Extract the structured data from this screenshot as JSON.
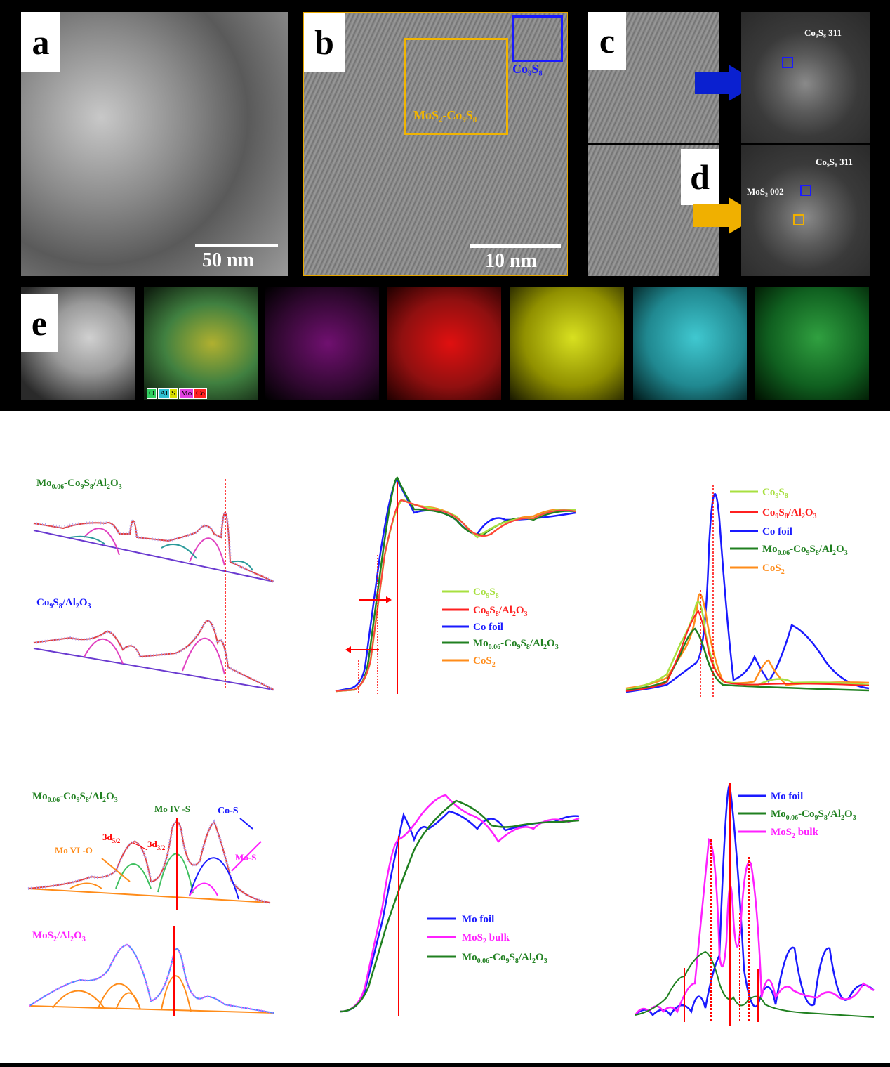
{
  "panels": {
    "a": {
      "letter": "a",
      "scale": "50 nm"
    },
    "b": {
      "letter": "b",
      "scale": "10 nm",
      "box1": "Co₉S₈",
      "box2": "MoS₂-Co₉S₈"
    },
    "c": {
      "letter": "c",
      "fft": "Co₉S₈ 311"
    },
    "d": {
      "letter": "d",
      "fft1": "Co₉S₈ 311",
      "fft2": "MoS₂ 002"
    },
    "e": {
      "letter": "e",
      "legend": [
        "O",
        "Al",
        "S",
        "Mo",
        "Co"
      ],
      "map_colors": [
        "#c000c0",
        "#ff0000",
        "#d8e000",
        "#00c8d0",
        "#00a020"
      ]
    }
  },
  "xps_co": {
    "top": "Mo0.06-Co9S8/Al2O3",
    "bottom": "Co9S8/Al2O3"
  },
  "xanes_co": {
    "legend": [
      "Co9S8",
      "Co9S8/Al2O3",
      "Co foil",
      "Mo0.06-Co9S8/Al2O3",
      "CoS2"
    ]
  },
  "ft_co": {
    "legend": [
      "Co9S8",
      "Co9S8/Al2O3",
      "Co foil",
      "Mo0.06-Co9S8/Al2O3",
      "CoS2"
    ]
  },
  "xps_mo": {
    "top": "Mo0.06-Co9S8/Al2O3",
    "bottom": "MoS2/Al2O3",
    "annotations": [
      "Mo VI -O",
      "3d5/2",
      "3d3/2",
      "Mo IV -S",
      "Co-S",
      "Mo-S"
    ]
  },
  "xanes_mo": {
    "legend": [
      "Mo foil",
      "MoS2 bulk",
      "Mo0.06-Co9S8/Al2O3"
    ]
  },
  "ft_mo": {
    "legend": [
      "Mo foil",
      "Mo0.06-Co9S8/Al2O3",
      "MoS2 bulk"
    ]
  },
  "colors": {
    "co9s8": "#a8e040",
    "co9s8_al": "#ff2020",
    "cofoil": "#1a1aff",
    "mo006": "#208020",
    "cos2": "#ff8c1a",
    "mos2": "#ff20ff",
    "red_line": "#ff0000"
  }
}
